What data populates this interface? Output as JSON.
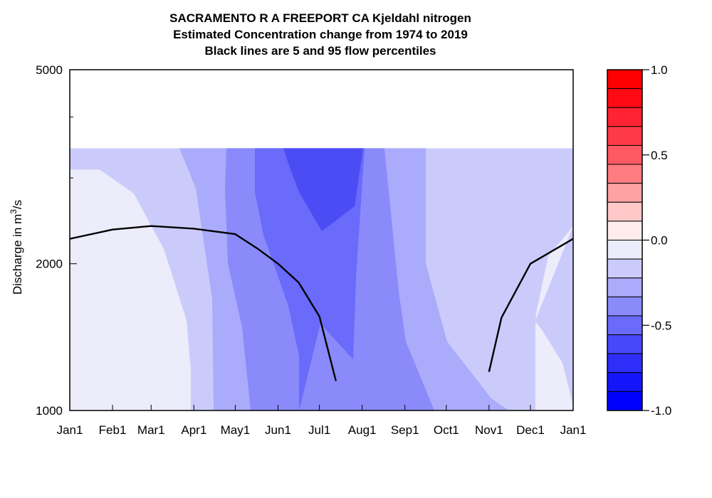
{
  "title_lines": [
    "SACRAMENTO R A FREEPORT CA  Kjeldahl nitrogen",
    "Estimated Concentration change from 1974 to 2019",
    "Black lines are 5 and 95 flow percentiles"
  ],
  "chart_data": {
    "type": "heatmap",
    "ylabel_main": "Discharge in m",
    "ylabel_sup": "3",
    "ylabel_tail": "/s",
    "x_tick_labels": [
      "Jan1",
      "Feb1",
      "Mar1",
      "Apr1",
      "May1",
      "Jun1",
      "Jul1",
      "Aug1",
      "Sep1",
      "Oct1",
      "Nov1",
      "Dec1",
      "Jan1"
    ],
    "x_tick_days": [
      0,
      31,
      59,
      90,
      120,
      151,
      181,
      212,
      243,
      273,
      304,
      334,
      365
    ],
    "xlim": [
      0,
      365
    ],
    "y_scale": "log",
    "ylim": [
      1000,
      5000
    ],
    "y_tick_values": [
      1000,
      2000,
      5000
    ],
    "y_tick_labels": [
      "1000",
      "2000",
      "5000"
    ],
    "data_top_discharge": 3450,
    "colorbar": {
      "range": [
        -1.0,
        1.0
      ],
      "tick_values": [
        1.0,
        0.5,
        0.0,
        -0.5,
        -1.0
      ],
      "tick_labels": [
        "1.0",
        "0.5",
        "0.0",
        "-0.5",
        "-1.0"
      ],
      "levels_top_to_bottom": [
        "#ff0000",
        "#ff0a14",
        "#ff2333",
        "#ff3a48",
        "#ff5a64",
        "#ff7c80",
        "#ffa2a4",
        "#ffc8c9",
        "#ffecec",
        "#ececfb",
        "#cbcbfb",
        "#ababfb",
        "#8a8afb",
        "#6a6afb",
        "#4848fb",
        "#2e2efb",
        "#1515fb",
        "#0000ff"
      ]
    },
    "contour_fill_colors": {
      "band_0_to_-0.11": "#ececfb",
      "band_-0.11_to_-0.22": "#cbcbfb",
      "band_-0.22_to_-0.33": "#ababfb",
      "band_-0.33_to_-0.44": "#8a8afb",
      "band_-0.44_to_-0.56": "#6a6afb"
    },
    "flow_percentile_lines": [
      {
        "x_days": [
          0,
          31,
          59,
          90,
          120,
          136,
          151,
          166,
          181,
          193
        ],
        "discharge": [
          2250,
          2350,
          2390,
          2360,
          2300,
          2150,
          2000,
          1830,
          1560,
          1150
        ]
      },
      {
        "x_days": [
          304,
          313,
          334,
          365
        ],
        "discharge": [
          1200,
          1550,
          2000,
          2250
        ]
      }
    ]
  }
}
